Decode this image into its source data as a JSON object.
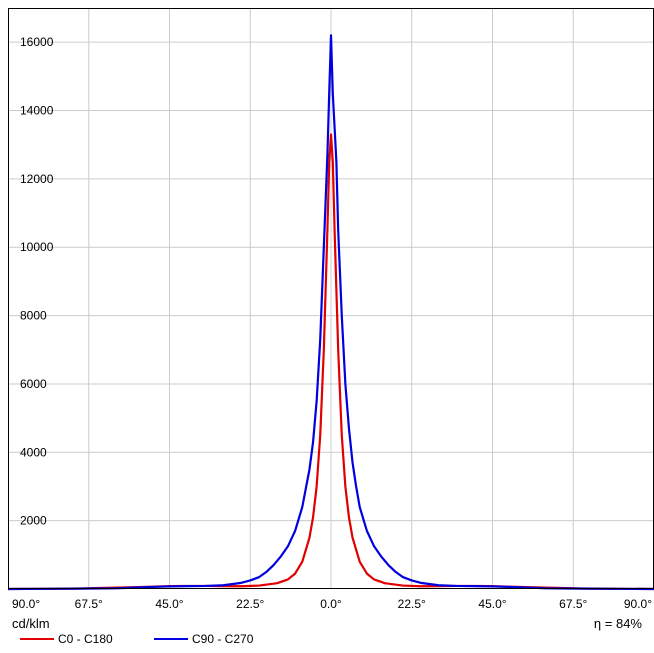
{
  "chart_data": {
    "type": "line",
    "title": "",
    "ylabel": "cd/klm",
    "xlim": [
      -90,
      90
    ],
    "ylim": [
      0,
      17000
    ],
    "x_tick_labels": [
      "90.0°",
      "67.5°",
      "45.0°",
      "22.5°",
      "0.0°",
      "22.5°",
      "45.0°",
      "67.5°",
      "90.0°"
    ],
    "y_tick_labels": [
      "2000",
      "4000",
      "6000",
      "8000",
      "10000",
      "12000",
      "14000",
      "16000"
    ],
    "grid": true,
    "legend": "bottom-left",
    "series": [
      {
        "name": "C0 - C180",
        "color": "#e00000",
        "points": [
          [
            -90,
            0
          ],
          [
            -80,
            5
          ],
          [
            -70,
            15
          ],
          [
            -60,
            40
          ],
          [
            -50,
            65
          ],
          [
            -45,
            85
          ],
          [
            -40,
            90
          ],
          [
            -35,
            90
          ],
          [
            -30,
            85
          ],
          [
            -25,
            80
          ],
          [
            -20,
            100
          ],
          [
            -15,
            170
          ],
          [
            -12,
            280
          ],
          [
            -10,
            450
          ],
          [
            -8,
            800
          ],
          [
            -6,
            1500
          ],
          [
            -5,
            2100
          ],
          [
            -4,
            3000
          ],
          [
            -3,
            4500
          ],
          [
            -2,
            7000
          ],
          [
            -1,
            10500
          ],
          [
            -0.5,
            12500
          ],
          [
            0,
            13300
          ],
          [
            0.5,
            12500
          ],
          [
            1,
            10500
          ],
          [
            2,
            7000
          ],
          [
            3,
            4500
          ],
          [
            4,
            3000
          ],
          [
            5,
            2100
          ],
          [
            6,
            1500
          ],
          [
            8,
            800
          ],
          [
            10,
            450
          ],
          [
            12,
            280
          ],
          [
            15,
            170
          ],
          [
            20,
            100
          ],
          [
            25,
            80
          ],
          [
            30,
            85
          ],
          [
            35,
            90
          ],
          [
            40,
            90
          ],
          [
            45,
            85
          ],
          [
            50,
            65
          ],
          [
            60,
            40
          ],
          [
            70,
            15
          ],
          [
            80,
            5
          ],
          [
            90,
            0
          ]
        ]
      },
      {
        "name": "C90 - C270",
        "color": "#0000e0",
        "points": [
          [
            -90,
            0
          ],
          [
            -80,
            5
          ],
          [
            -70,
            10
          ],
          [
            -60,
            20
          ],
          [
            -50,
            60
          ],
          [
            -45,
            75
          ],
          [
            -40,
            85
          ],
          [
            -35,
            90
          ],
          [
            -30,
            110
          ],
          [
            -25,
            180
          ],
          [
            -22.5,
            250
          ],
          [
            -20,
            350
          ],
          [
            -18,
            500
          ],
          [
            -16,
            700
          ],
          [
            -14,
            950
          ],
          [
            -12,
            1250
          ],
          [
            -10,
            1700
          ],
          [
            -8,
            2400
          ],
          [
            -6,
            3500
          ],
          [
            -5,
            4300
          ],
          [
            -4,
            5500
          ],
          [
            -3,
            7300
          ],
          [
            -2,
            10000
          ],
          [
            -1,
            12700
          ],
          [
            -0.5,
            14500
          ],
          [
            0,
            16200
          ],
          [
            0.5,
            14500
          ],
          [
            1,
            13500
          ],
          [
            1.5,
            12500
          ],
          [
            2,
            10500
          ],
          [
            3,
            8000
          ],
          [
            4,
            6000
          ],
          [
            5,
            4700
          ],
          [
            6,
            3700
          ],
          [
            7,
            3000
          ],
          [
            8,
            2400
          ],
          [
            10,
            1700
          ],
          [
            12,
            1250
          ],
          [
            14,
            950
          ],
          [
            16,
            700
          ],
          [
            18,
            500
          ],
          [
            20,
            350
          ],
          [
            22.5,
            250
          ],
          [
            25,
            180
          ],
          [
            30,
            110
          ],
          [
            35,
            90
          ],
          [
            40,
            85
          ],
          [
            45,
            75
          ],
          [
            50,
            60
          ],
          [
            60,
            20
          ],
          [
            70,
            10
          ],
          [
            80,
            5
          ],
          [
            90,
            0
          ]
        ]
      }
    ]
  },
  "efficiency": "η = 84%"
}
